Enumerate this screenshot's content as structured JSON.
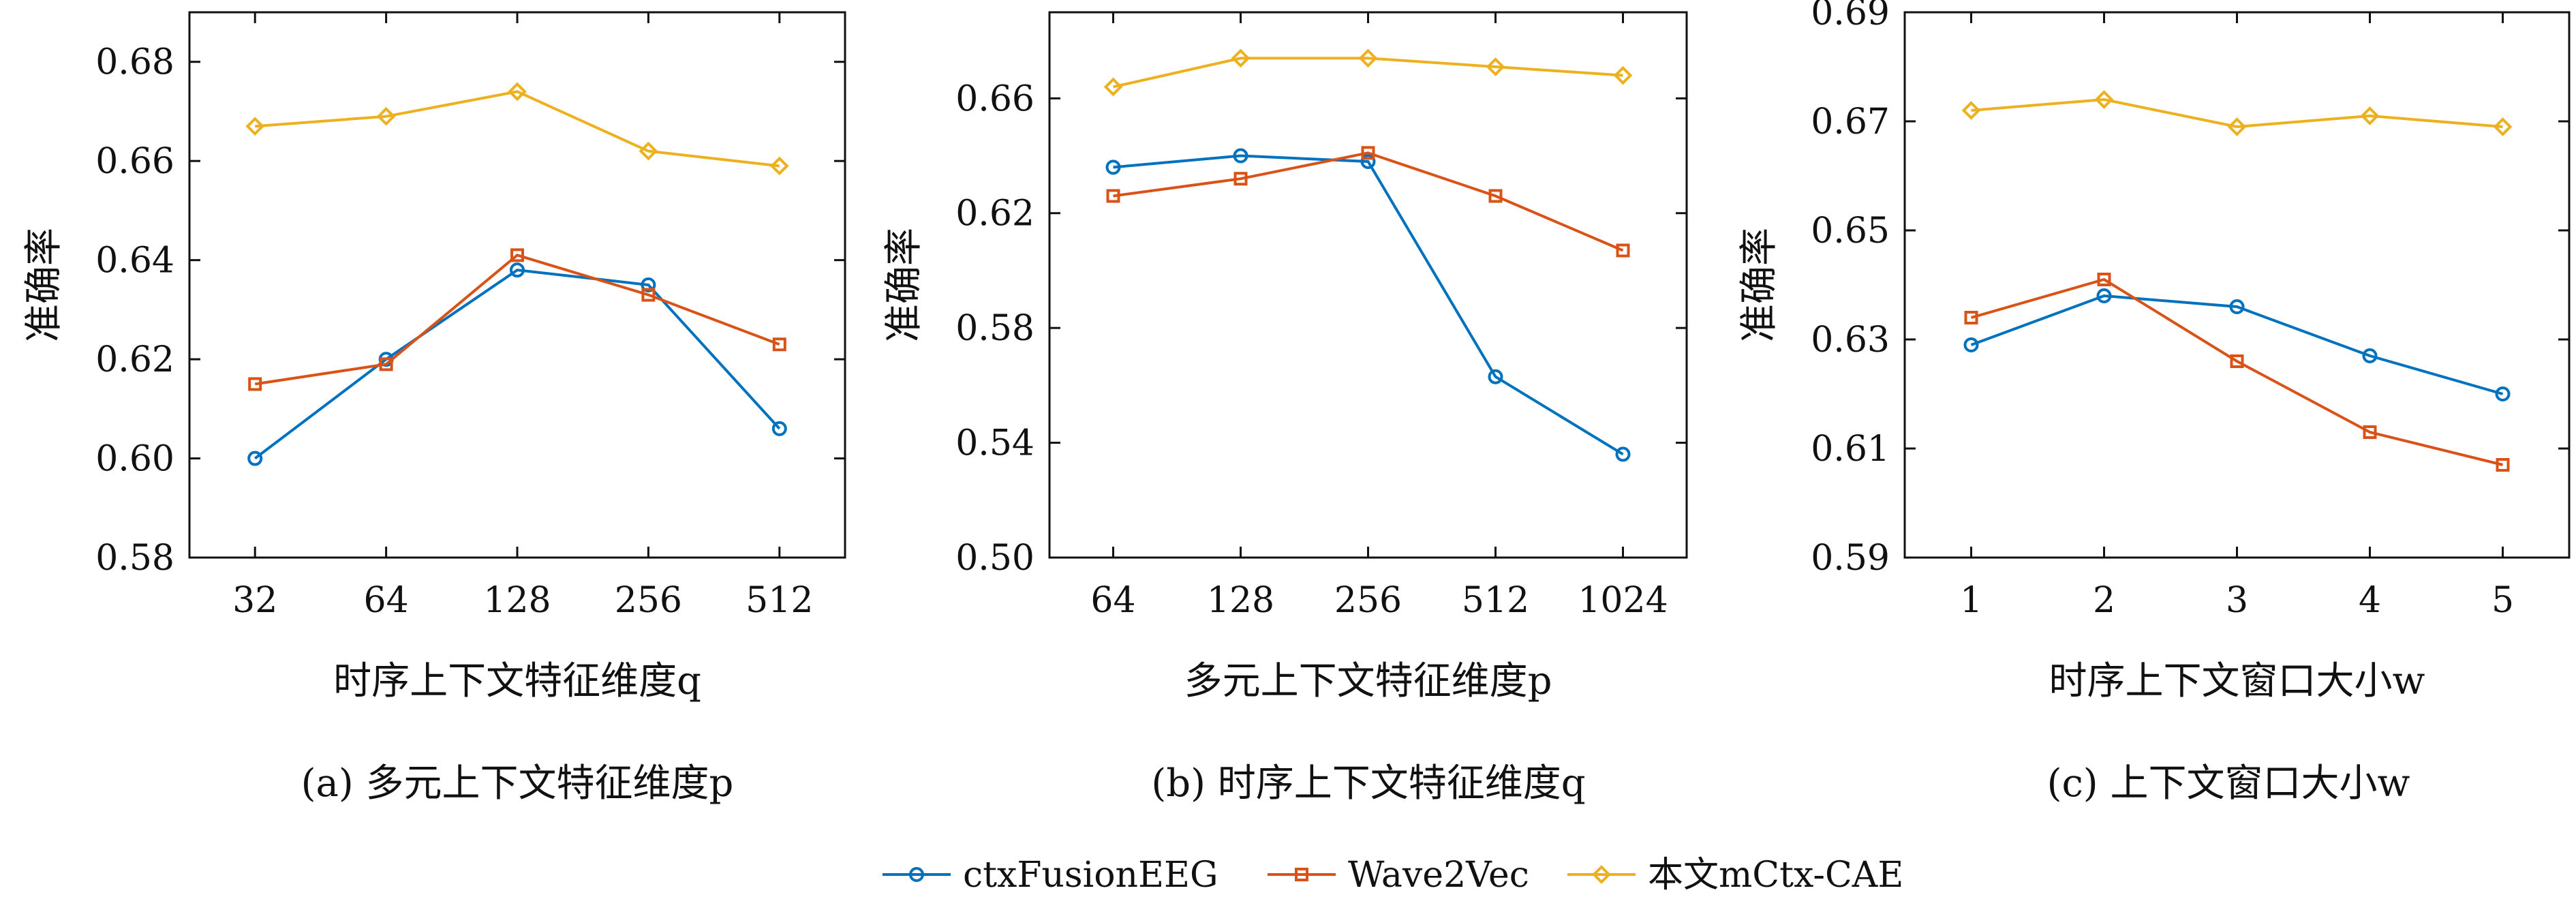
{
  "chart_data": [
    {
      "type": "line",
      "caption": "(a) 多元上下文特征维度p",
      "xlabel": "时序上下文特征维度q",
      "ylabel": "准确率",
      "categories": [
        "32",
        "64",
        "128",
        "256",
        "512"
      ],
      "ylim": [
        0.58,
        0.69
      ],
      "yticks": [
        "0.58",
        "0.60",
        "0.62",
        "0.64",
        "0.66",
        "0.68"
      ],
      "ytick_values": [
        0.58,
        0.6,
        0.62,
        0.64,
        0.66,
        0.68
      ],
      "series": [
        {
          "name": "ctxFusionEEG",
          "values": [
            0.6,
            0.62,
            0.638,
            0.635,
            0.606
          ]
        },
        {
          "name": "Wave2Vec",
          "values": [
            0.615,
            0.619,
            0.641,
            0.633,
            0.623
          ]
        },
        {
          "name": "本文mCtx-CAE",
          "values": [
            0.667,
            0.669,
            0.674,
            0.662,
            0.659
          ]
        }
      ]
    },
    {
      "type": "line",
      "caption": "(b)  时序上下文特征维度q",
      "xlabel": "多元上下文特征维度p",
      "ylabel": "准确率",
      "categories": [
        "64",
        "128",
        "256",
        "512",
        "1024"
      ],
      "ylim": [
        0.5,
        0.69
      ],
      "yticks": [
        "0.50",
        "0.54",
        "0.58",
        "0.62",
        "0.66"
      ],
      "ytick_values": [
        0.5,
        0.54,
        0.58,
        0.62,
        0.66
      ],
      "series": [
        {
          "name": "ctxFusionEEG",
          "values": [
            0.636,
            0.64,
            0.638,
            0.563,
            0.536
          ]
        },
        {
          "name": "Wave2Vec",
          "values": [
            0.626,
            0.632,
            0.641,
            0.626,
            0.607
          ]
        },
        {
          "name": "本文mCtx-CAE",
          "values": [
            0.664,
            0.674,
            0.674,
            0.671,
            0.668
          ]
        }
      ]
    },
    {
      "type": "line",
      "caption": "(c) 上下文窗口大小w",
      "xlabel": "时序上下文窗口大小w",
      "ylabel": "准确率",
      "categories": [
        "1",
        "2",
        "3",
        "4",
        "5"
      ],
      "ylim": [
        0.59,
        0.69
      ],
      "yticks": [
        "0.59",
        "0.61",
        "0.63",
        "0.65",
        "0.67",
        "0.69"
      ],
      "ytick_values": [
        0.59,
        0.61,
        0.63,
        0.65,
        0.67,
        0.69
      ],
      "series": [
        {
          "name": "ctxFusionEEG",
          "values": [
            0.629,
            0.638,
            0.636,
            0.627,
            0.62
          ]
        },
        {
          "name": "Wave2Vec",
          "values": [
            0.634,
            0.641,
            0.626,
            0.613,
            0.607
          ]
        },
        {
          "name": "本文mCtx-CAE",
          "values": [
            0.672,
            0.674,
            0.669,
            0.671,
            0.669
          ]
        }
      ]
    }
  ],
  "legend": {
    "placement": "bottom-center",
    "items": [
      {
        "label": "ctxFusionEEG",
        "color": "#0072bd",
        "marker": "circle"
      },
      {
        "label": "Wave2Vec",
        "color": "#d95319",
        "marker": "square"
      },
      {
        "label": "本文mCtx-CAE",
        "color": "#edb120",
        "marker": "diamond"
      }
    ]
  }
}
